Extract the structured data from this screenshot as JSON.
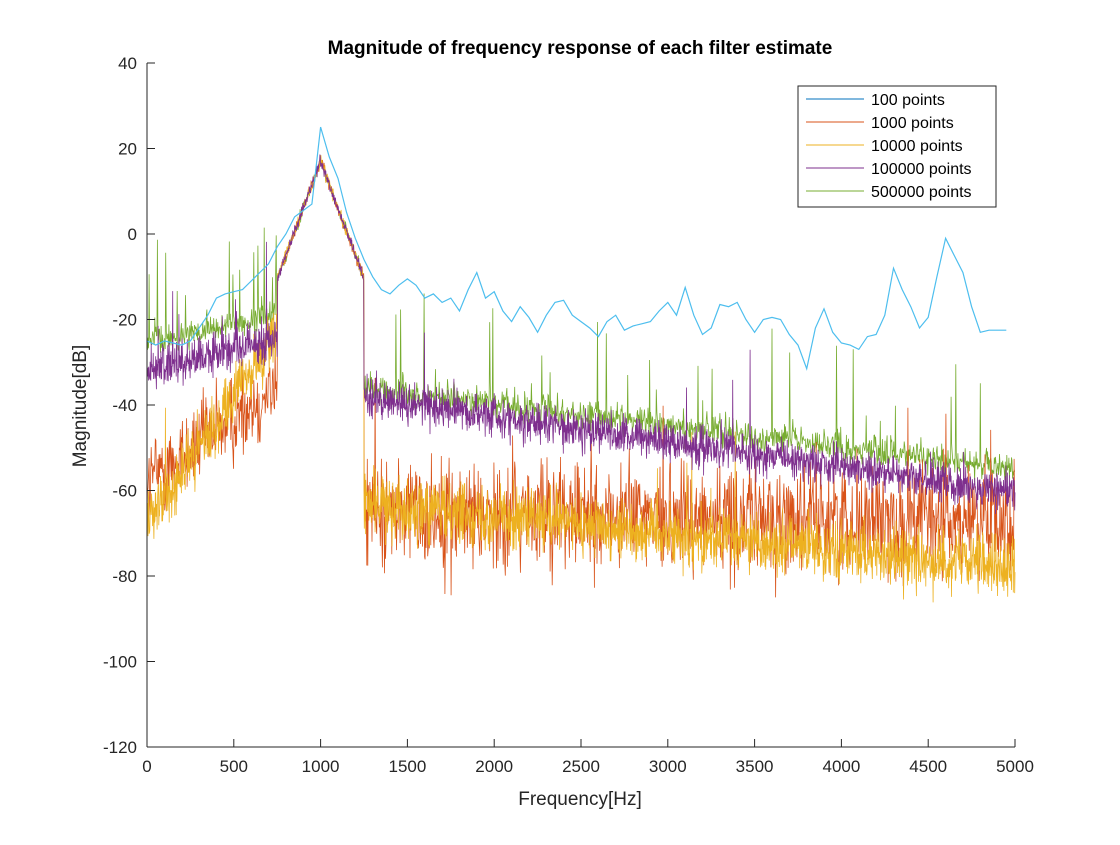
{
  "chart_data": {
    "type": "line",
    "title": "Magnitude of frequency response of each filter estimate",
    "xlabel": "Frequency[Hz]",
    "ylabel": "Magnitude[dB]",
    "xlim": [
      0,
      5000
    ],
    "ylim": [
      -120,
      40
    ],
    "x_ticks": [
      0,
      500,
      1000,
      1500,
      2000,
      2500,
      3000,
      3500,
      4000,
      4500,
      5000
    ],
    "y_ticks": [
      40,
      20,
      0,
      -20,
      -40,
      -60,
      -80,
      -100,
      -120
    ],
    "grid": false,
    "legend_position": "top-right",
    "series": [
      {
        "name": "100 points",
        "color": "#4DBEEE",
        "x": [
          0,
          50,
          100,
          150,
          200,
          250,
          300,
          350,
          400,
          450,
          500,
          550,
          600,
          650,
          700,
          750,
          800,
          850,
          900,
          950,
          1000,
          1050,
          1100,
          1150,
          1200,
          1250,
          1300,
          1350,
          1400,
          1450,
          1500,
          1550,
          1600,
          1650,
          1700,
          1750,
          1800,
          1850,
          1900,
          1950,
          2000,
          2050,
          2100,
          2150,
          2200,
          2250,
          2300,
          2350,
          2400,
          2450,
          2500,
          2550,
          2600,
          2650,
          2700,
          2750,
          2800,
          2850,
          2900,
          2950,
          3000,
          3050,
          3100,
          3150,
          3200,
          3250,
          3300,
          3350,
          3400,
          3450,
          3500,
          3550,
          3600,
          3650,
          3700,
          3750,
          3800,
          3850,
          3900,
          3950,
          4000,
          4050,
          4100,
          4150,
          4200,
          4250,
          4300,
          4350,
          4400,
          4450,
          4500,
          4550,
          4600,
          4650,
          4700,
          4750,
          4800,
          4850,
          4900,
          4950
        ],
        "values": [
          -25,
          -26,
          -25,
          -25.5,
          -26,
          -25,
          -22,
          -19,
          -15,
          -14,
          -13.5,
          -13,
          -11,
          -9,
          -7,
          -3,
          0,
          4,
          5.5,
          7,
          25,
          18,
          13,
          5,
          -1,
          -6,
          -10,
          -13,
          -14,
          -12,
          -10.5,
          -12,
          -15,
          -14,
          -16,
          -15,
          -18,
          -13,
          -9,
          -15,
          -13.5,
          -18,
          -20.5,
          -17,
          -19.5,
          -23,
          -19,
          -16,
          -15.5,
          -19,
          -20.5,
          -22,
          -24,
          -20.5,
          -19,
          -22.5,
          -21.5,
          -21,
          -20.5,
          -18,
          -16,
          -19,
          -12.5,
          -19,
          -23.5,
          -22,
          -16.5,
          -17,
          -16,
          -20,
          -23,
          -20,
          -19.5,
          -20,
          -23.5,
          -26,
          -31.5,
          -22,
          -17.5,
          -23,
          -25.5,
          -26,
          -27,
          -24,
          -23.5,
          -19,
          -8,
          -13,
          -17,
          -22,
          -19.5,
          -10,
          -1,
          -5,
          -9,
          -17,
          -23,
          -22.5,
          -22.5,
          -22.5
        ]
      },
      {
        "name": "1000 points",
        "color": "#D95319"
      },
      {
        "name": "10000 points",
        "color": "#EDB120"
      },
      {
        "name": "100000 points",
        "color": "#7E2F8E"
      },
      {
        "name": "500000 points",
        "color": "#77AC30"
      }
    ],
    "legend_line_color": "#0072BD"
  }
}
